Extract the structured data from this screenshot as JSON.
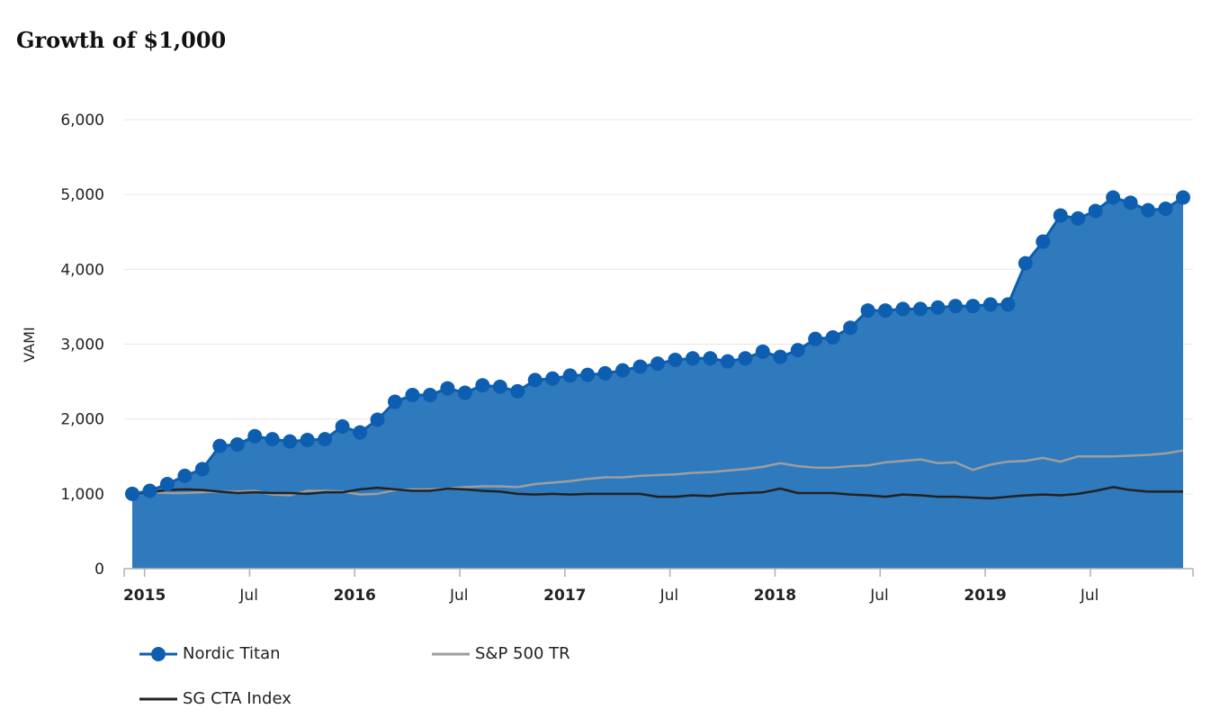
{
  "chart_data": {
    "type": "line",
    "title": "Growth of $1,000",
    "ylabel": "VAMI",
    "xlabel": "",
    "ylim": [
      0,
      6000
    ],
    "yticks": [
      0,
      1000,
      2000,
      3000,
      4000,
      5000,
      6000
    ],
    "ytick_labels": [
      "0",
      "1,000",
      "2,000",
      "3,000",
      "4,000",
      "5,000",
      "6,000"
    ],
    "xticks": [
      {
        "label": "2015",
        "index": 0.7,
        "bold": true
      },
      {
        "label": "Jul",
        "index": 6.7,
        "bold": false
      },
      {
        "label": "2016",
        "index": 12.7,
        "bold": true
      },
      {
        "label": "Jul",
        "index": 18.7,
        "bold": false
      },
      {
        "label": "2017",
        "index": 24.7,
        "bold": true
      },
      {
        "label": "Jul",
        "index": 30.7,
        "bold": false
      },
      {
        "label": "2018",
        "index": 36.7,
        "bold": true
      },
      {
        "label": "Jul",
        "index": 42.7,
        "bold": false
      },
      {
        "label": "2019",
        "index": 48.7,
        "bold": true
      },
      {
        "label": "Jul",
        "index": 54.7,
        "bold": false
      }
    ],
    "grid": true,
    "legend": "bottom-left",
    "series": [
      {
        "name": "Nordic Titan",
        "color": "#0d5eb0",
        "fill": "#2f79bd",
        "marker": "circle",
        "values": [
          1000,
          1040,
          1130,
          1240,
          1330,
          1640,
          1660,
          1770,
          1730,
          1700,
          1720,
          1730,
          1900,
          1820,
          1990,
          2230,
          2320,
          2320,
          2410,
          2350,
          2450,
          2430,
          2370,
          2520,
          2540,
          2580,
          2590,
          2610,
          2650,
          2700,
          2740,
          2790,
          2810,
          2810,
          2770,
          2810,
          2900,
          2830,
          2920,
          3070,
          3090,
          3220,
          3450,
          3450,
          3470,
          3470,
          3490,
          3510,
          3510,
          3530,
          3530,
          4080,
          4370,
          4720,
          4680,
          4780,
          4960,
          4890,
          4790,
          4810,
          4960
        ]
      },
      {
        "name": "S&P 500 TR",
        "color": "#9e9e9e",
        "marker": "none",
        "values": [
          1000,
          1020,
          1010,
          1010,
          1020,
          1030,
          1030,
          1040,
          990,
          980,
          1040,
          1040,
          1030,
          990,
          1000,
          1050,
          1060,
          1060,
          1070,
          1090,
          1100,
          1100,
          1090,
          1130,
          1150,
          1170,
          1200,
          1220,
          1220,
          1240,
          1250,
          1260,
          1280,
          1290,
          1310,
          1330,
          1360,
          1410,
          1370,
          1350,
          1350,
          1370,
          1380,
          1420,
          1440,
          1460,
          1410,
          1420,
          1320,
          1390,
          1430,
          1440,
          1480,
          1430,
          1500,
          1500,
          1500,
          1510,
          1520,
          1540,
          1580
        ]
      },
      {
        "name": "SG CTA Index",
        "color": "#222222",
        "marker": "none",
        "values": [
          1000,
          1020,
          1050,
          1060,
          1050,
          1030,
          1010,
          1020,
          1010,
          1010,
          1000,
          1020,
          1020,
          1060,
          1080,
          1060,
          1040,
          1040,
          1070,
          1060,
          1040,
          1030,
          1000,
          990,
          1000,
          990,
          1000,
          1000,
          1000,
          1000,
          960,
          960,
          980,
          970,
          1000,
          1010,
          1020,
          1070,
          1010,
          1010,
          1010,
          990,
          980,
          960,
          990,
          980,
          960,
          960,
          950,
          940,
          960,
          980,
          990,
          980,
          1000,
          1040,
          1090,
          1050,
          1030,
          1030,
          1030
        ]
      }
    ]
  },
  "legend": {
    "items": [
      {
        "label": "Nordic Titan"
      },
      {
        "label": "S&P 500 TR"
      },
      {
        "label": "SG CTA Index"
      }
    ]
  }
}
